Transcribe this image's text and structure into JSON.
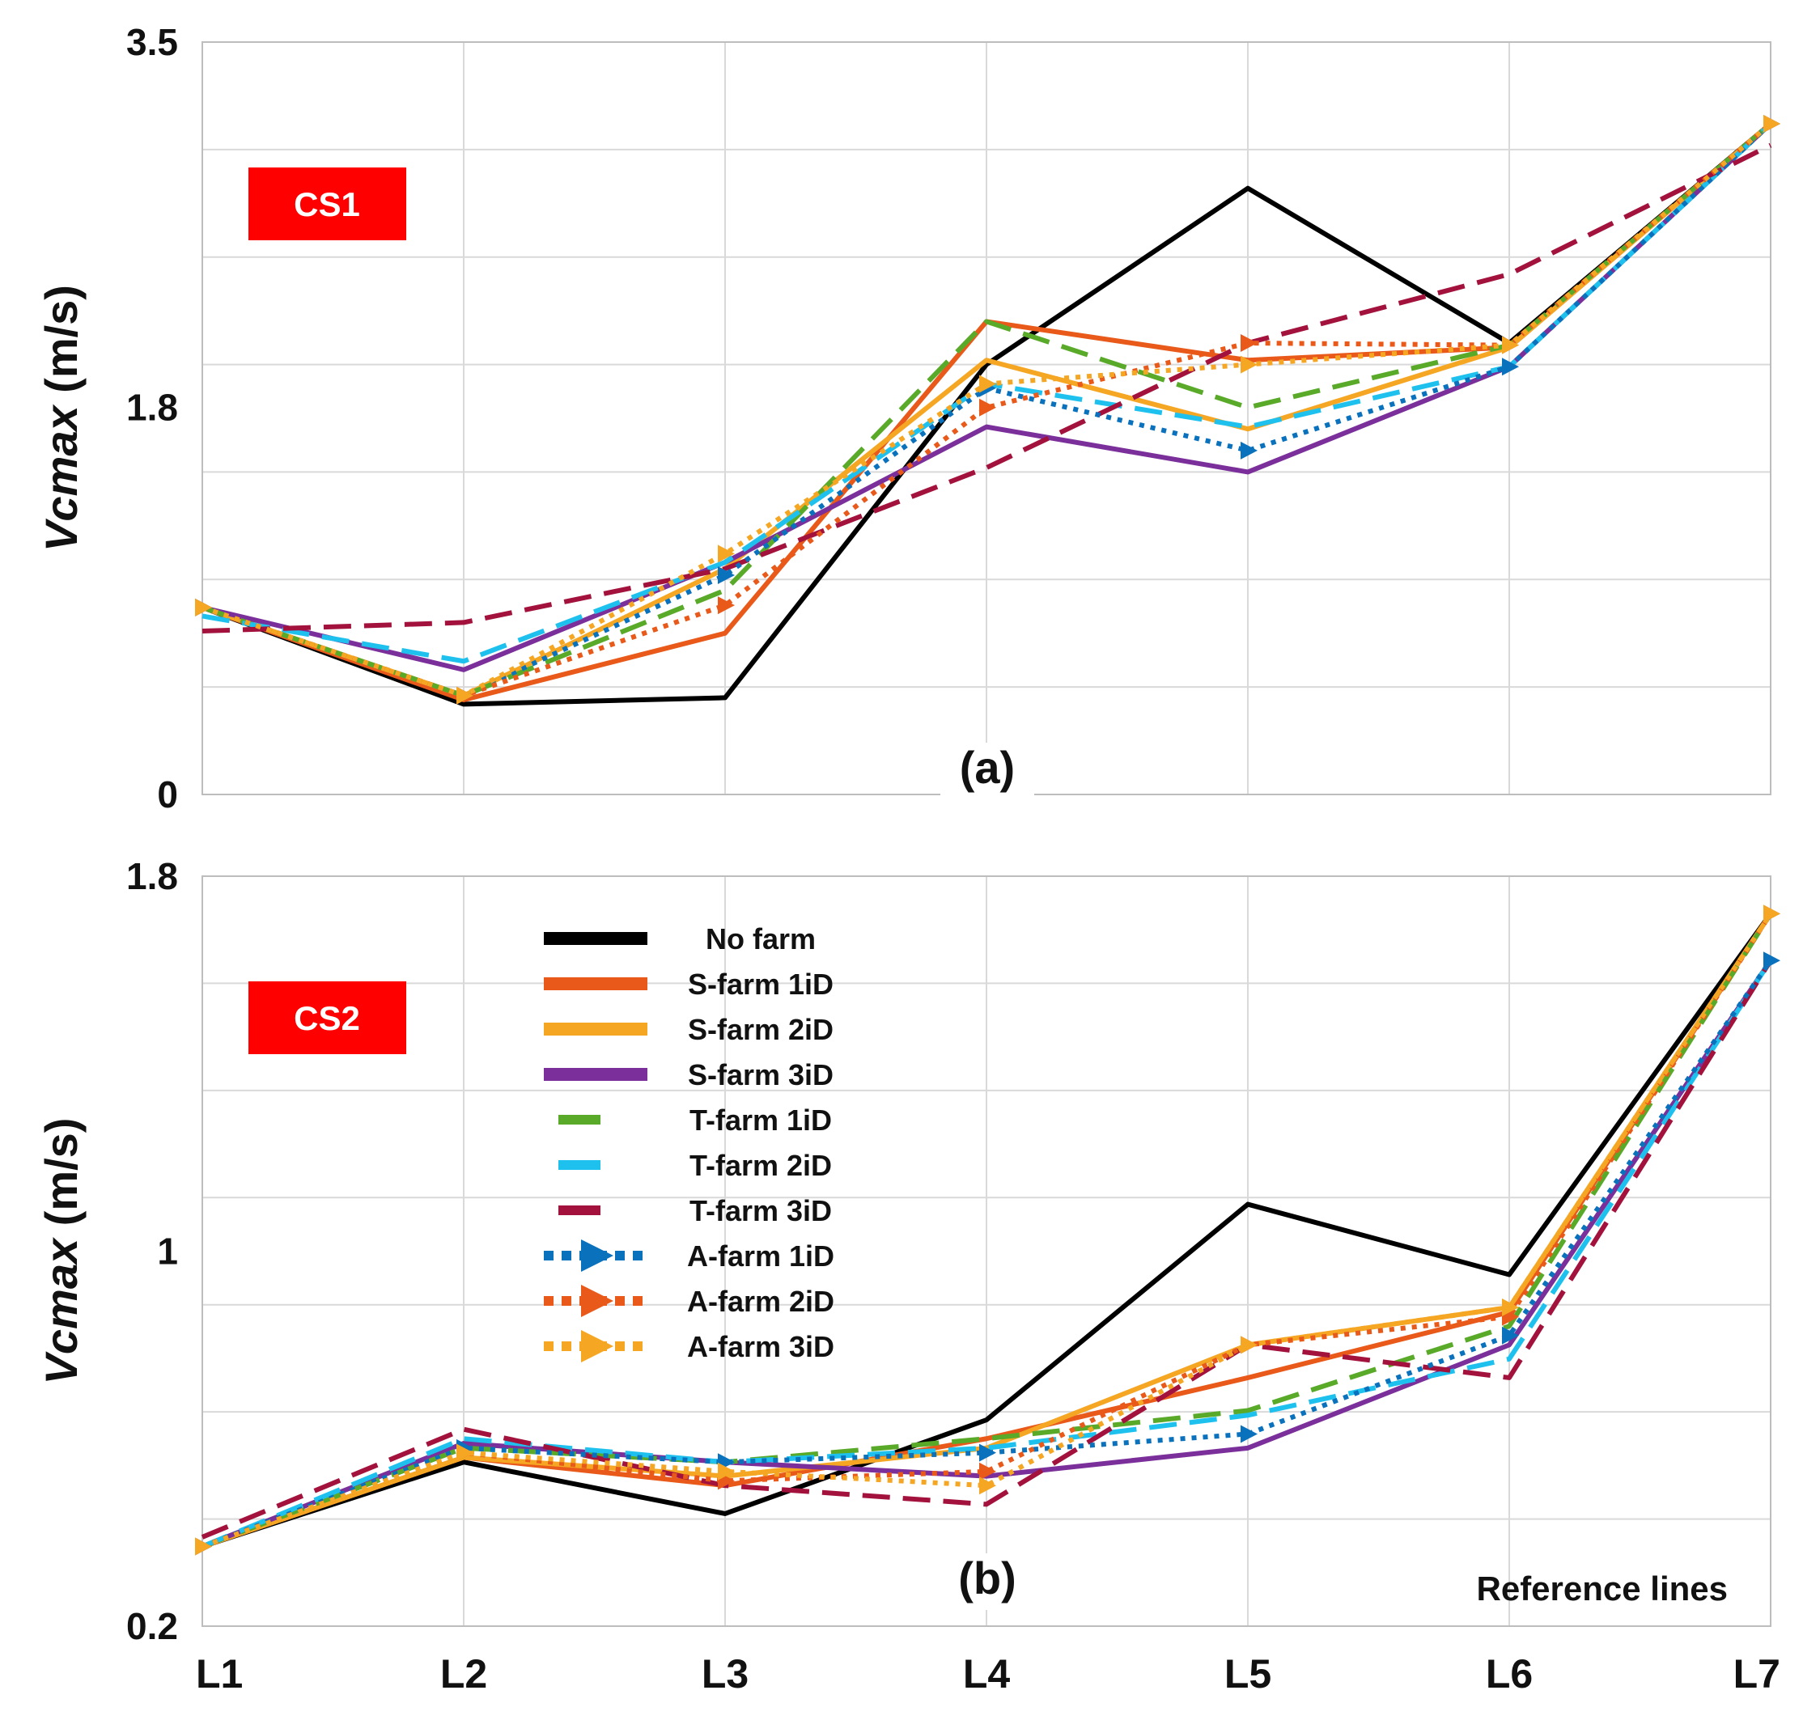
{
  "chart_data": [
    {
      "type": "line",
      "panel_label": "(a)",
      "case_label": "CS1",
      "ylabel": "Vcmax (m/s)",
      "ylabel_italic": "Vcmax",
      "ylabel_unit": "(m/s)",
      "ylim": [
        0,
        3.5
      ],
      "yticks": [
        0,
        1.8,
        3.5
      ],
      "ytick_labels": [
        "0",
        "1.8",
        "3.5"
      ],
      "grid": true,
      "categories": [
        "L1",
        "L2",
        "L3",
        "L4",
        "L5",
        "L6",
        "L7"
      ],
      "series": [
        {
          "name": "No farm",
          "values": [
            0.87,
            0.42,
            0.45,
            2.0,
            2.82,
            2.1,
            3.12
          ]
        },
        {
          "name": "S-farm 1iD",
          "values": [
            0.87,
            0.44,
            0.75,
            2.2,
            2.02,
            2.08,
            3.12
          ]
        },
        {
          "name": "S-farm 2iD",
          "values": [
            0.87,
            0.46,
            1.05,
            2.02,
            1.7,
            2.08,
            3.12
          ]
        },
        {
          "name": "S-farm 3iD",
          "values": [
            0.87,
            0.58,
            1.08,
            1.71,
            1.5,
            1.99,
            3.12
          ]
        },
        {
          "name": "T-farm 1iD",
          "values": [
            0.87,
            0.46,
            0.95,
            2.2,
            1.8,
            2.09,
            3.12
          ]
        },
        {
          "name": "T-farm 2iD",
          "values": [
            0.83,
            0.62,
            1.08,
            1.91,
            1.71,
            1.99,
            3.12
          ]
        },
        {
          "name": "T-farm 3iD",
          "values": [
            0.76,
            0.8,
            1.05,
            1.52,
            2.1,
            2.42,
            3.02
          ]
        },
        {
          "name": "A-farm 1iD",
          "values": [
            0.87,
            0.46,
            1.02,
            1.89,
            1.6,
            1.99,
            3.12
          ]
        },
        {
          "name": "A-farm 2iD",
          "values": [
            0.87,
            0.46,
            0.88,
            1.8,
            2.1,
            2.09,
            3.12
          ]
        },
        {
          "name": "A-farm 3iD",
          "values": [
            0.87,
            0.46,
            1.12,
            1.91,
            2.0,
            2.09,
            3.12
          ]
        }
      ]
    },
    {
      "type": "line",
      "panel_label": "(b)",
      "case_label": "CS2",
      "ylabel": "Vcmax (m/s)",
      "ylabel_italic": "Vcmax",
      "ylabel_unit": "(m/s)",
      "xlabel_note": "Reference lines",
      "ylim": [
        0.2,
        1.8
      ],
      "yticks": [
        0.2,
        1.0,
        1.8
      ],
      "ytick_labels": [
        "0.2",
        "1",
        "1.8"
      ],
      "grid": true,
      "legend_position": "center-left",
      "categories": [
        "L1",
        "L2",
        "L3",
        "L4",
        "L5",
        "L6",
        "L7"
      ],
      "series": [
        {
          "name": "No farm",
          "values": [
            0.37,
            0.55,
            0.44,
            0.64,
            1.1,
            0.95,
            1.72
          ]
        },
        {
          "name": "S-farm 1iD",
          "values": [
            0.37,
            0.56,
            0.5,
            0.6,
            0.73,
            0.87,
            1.72
          ]
        },
        {
          "name": "S-farm 2iD",
          "values": [
            0.37,
            0.56,
            0.52,
            0.58,
            0.8,
            0.88,
            1.72
          ]
        },
        {
          "name": "S-farm 3iD",
          "values": [
            0.37,
            0.59,
            0.55,
            0.52,
            0.58,
            0.8,
            1.62
          ]
        },
        {
          "name": "T-farm 1iD",
          "values": [
            0.37,
            0.58,
            0.55,
            0.6,
            0.66,
            0.84,
            1.72
          ]
        },
        {
          "name": "T-farm 2iD",
          "values": [
            0.37,
            0.6,
            0.55,
            0.58,
            0.65,
            0.77,
            1.62
          ]
        },
        {
          "name": "T-farm 3iD",
          "values": [
            0.39,
            0.62,
            0.5,
            0.46,
            0.8,
            0.73,
            1.62
          ]
        },
        {
          "name": "A-farm 1iD",
          "values": [
            0.37,
            0.58,
            0.55,
            0.57,
            0.61,
            0.82,
            1.62
          ]
        },
        {
          "name": "A-farm 2iD",
          "values": [
            0.37,
            0.57,
            0.51,
            0.53,
            0.8,
            0.86,
            1.72
          ]
        },
        {
          "name": "A-farm 3iD",
          "values": [
            0.37,
            0.57,
            0.53,
            0.5,
            0.8,
            0.88,
            1.72
          ]
        }
      ]
    }
  ],
  "series_styles": {
    "No farm": {
      "color": "#000000",
      "dash": "solid",
      "marker": false
    },
    "S-farm 1iD": {
      "color": "#e8591a",
      "dash": "solid",
      "marker": false
    },
    "S-farm 2iD": {
      "color": "#f5a623",
      "dash": "solid",
      "marker": false
    },
    "S-farm 3iD": {
      "color": "#7b2f9a",
      "dash": "solid",
      "marker": false
    },
    "T-farm 1iD": {
      "color": "#5aaa2a",
      "dash": "dashed",
      "marker": false
    },
    "T-farm 2iD": {
      "color": "#1ec1ee",
      "dash": "dashed",
      "marker": false
    },
    "T-farm 3iD": {
      "color": "#a3123c",
      "dash": "dashed",
      "marker": false
    },
    "A-farm 1iD": {
      "color": "#0a72bd",
      "dash": "dotted",
      "marker": true
    },
    "A-farm 2iD": {
      "color": "#e8591a",
      "dash": "dotted",
      "marker": true
    },
    "A-farm 3iD": {
      "color": "#f5a623",
      "dash": "dotted",
      "marker": true
    }
  },
  "case_label_color": "#ff0000"
}
